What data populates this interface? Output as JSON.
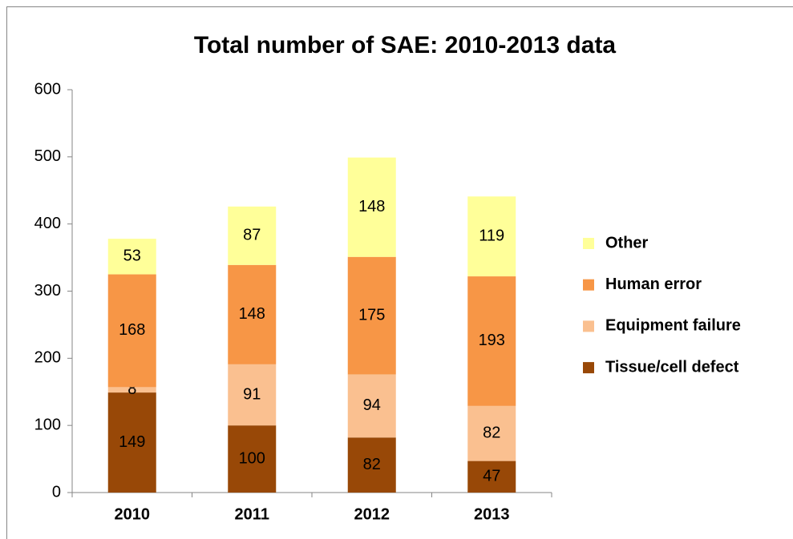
{
  "chart_data": {
    "type": "stacked_bar",
    "title": "Total number of SAE: 2010-2013 data",
    "categories": [
      "2010",
      "2011",
      "2012",
      "2013"
    ],
    "series": [
      {
        "name": "Tissue/cell defect",
        "color": "#984807",
        "values": [
          149,
          100,
          82,
          47
        ]
      },
      {
        "name": "Equipment failure",
        "color": "#fac090",
        "values": [
          8,
          91,
          94,
          82
        ]
      },
      {
        "name": "Human error",
        "color": "#f79646",
        "values": [
          168,
          148,
          175,
          193
        ]
      },
      {
        "name": "Other",
        "color": "#ffff99",
        "values": [
          53,
          87,
          148,
          119
        ]
      }
    ],
    "ylim": [
      0,
      600
    ],
    "yticks": [
      0,
      100,
      200,
      300,
      400,
      500,
      600
    ],
    "grid": false,
    "legend": "right"
  }
}
